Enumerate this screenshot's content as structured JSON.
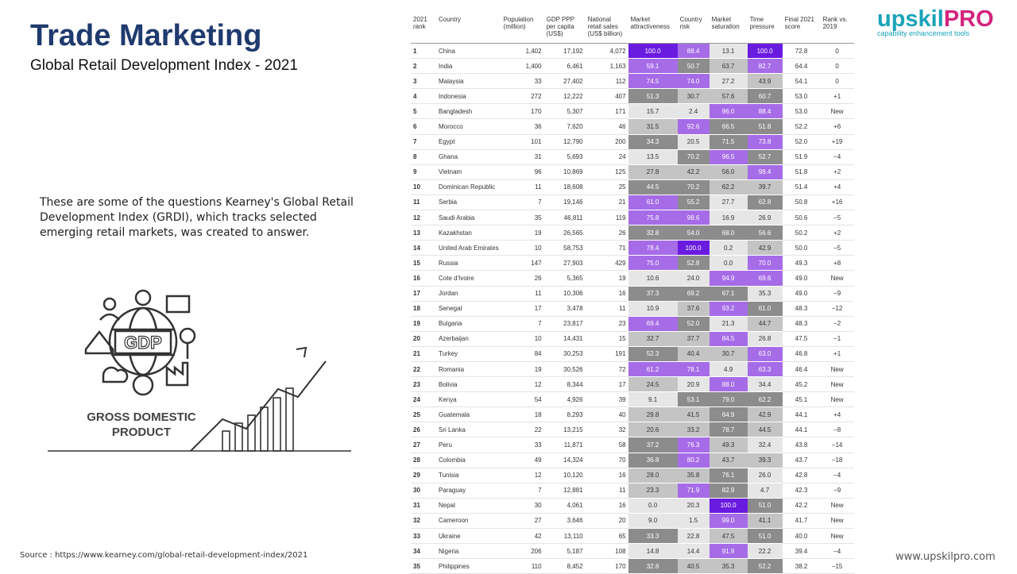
{
  "header": {
    "title": "Trade Marketing",
    "subtitle": "Global Retail Development Index - 2021"
  },
  "body": {
    "text": "These are some of the questions Kearney's Global Retail Development Index (GRDI), which tracks selected emerging retail markets, was created to answer."
  },
  "illustration": {
    "badge": "GDP",
    "caption_lines": [
      "GROSS DOMESTIC",
      "PRODUCT"
    ]
  },
  "footer": {
    "source": "Source : https://www.kearney.com/global-retail-development-index/2021",
    "website": "www.upskilpro.com"
  },
  "logo": {
    "name": "upskil",
    "suffix": "PRO",
    "tagline": "capability enhancement tools"
  },
  "table": {
    "header": [
      "2021 rank",
      "Country",
      "Population (million)",
      "GDP PPP per capita (US$)",
      "National retail sales (US$ billion)",
      "Market attractiveness",
      "Country risk",
      "Market saturation",
      "Time pressure",
      "Final 2021 score",
      "Rank vs. 2019"
    ],
    "rows": [
      [
        "1",
        "China",
        "1,402",
        "17,192",
        "4,072",
        "100.0",
        "88.4",
        "13.1",
        "100.0",
        "72.8",
        "0"
      ],
      [
        "2",
        "India",
        "1,400",
        "6,461",
        "1,163",
        "59.1",
        "50.7",
        "63.7",
        "82.7",
        "64.4",
        "0"
      ],
      [
        "3",
        "Malaysia",
        "33",
        "27,402",
        "112",
        "74.5",
        "74.0",
        "27.2",
        "43.9",
        "54.1",
        "0"
      ],
      [
        "4",
        "Indonesia",
        "272",
        "12,222",
        "407",
        "51.3",
        "30.7",
        "57.6",
        "60.7",
        "53.0",
        "+1"
      ],
      [
        "5",
        "Bangladesh",
        "170",
        "5,307",
        "171",
        "15.7",
        "2.4",
        "96.0",
        "88.4",
        "53.0",
        "New"
      ],
      [
        "6",
        "Morocco",
        "36",
        "7,620",
        "46",
        "31.5",
        "92.6",
        "66.5",
        "51.8",
        "52.2",
        "+6"
      ],
      [
        "7",
        "Egypt",
        "101",
        "12,790",
        "200",
        "34.3",
        "20.5",
        "71.5",
        "73.8",
        "52.0",
        "+19"
      ],
      [
        "8",
        "Ghana",
        "31",
        "5,693",
        "24",
        "13.5",
        "70.2",
        "96.5",
        "52.7",
        "51.9",
        "−4"
      ],
      [
        "9",
        "Vietnam",
        "96",
        "10,869",
        "125",
        "27.8",
        "42.2",
        "56.0",
        "98.4",
        "51.8",
        "+2"
      ],
      [
        "10",
        "Dominican Republic",
        "11",
        "18,608",
        "25",
        "44.5",
        "70.2",
        "62.2",
        "39.7",
        "51.4",
        "+4"
      ],
      [
        "11",
        "Serbia",
        "7",
        "19,146",
        "21",
        "61.0",
        "55.2",
        "27.7",
        "62.8",
        "50.8",
        "+16"
      ],
      [
        "12",
        "Saudi Arabia",
        "35",
        "46,811",
        "119",
        "75.8",
        "98.6",
        "16.9",
        "26.9",
        "50.6",
        "−5"
      ],
      [
        "13",
        "Kazakhstan",
        "19",
        "26,565",
        "26",
        "32.8",
        "54.0",
        "68.0",
        "56.6",
        "50.2",
        "+2"
      ],
      [
        "14",
        "United Arab Emirates",
        "10",
        "58,753",
        "71",
        "78.4",
        "100.0",
        "0.2",
        "42.9",
        "50.0",
        "−5"
      ],
      [
        "15",
        "Russia",
        "147",
        "27,903",
        "429",
        "75.0",
        "52.8",
        "0.0",
        "70.0",
        "49.3",
        "+8"
      ],
      [
        "16",
        "Cote d'Ivoire",
        "26",
        "5,365",
        "19",
        "10.6",
        "24.0",
        "94.9",
        "69.6",
        "49.0",
        "New"
      ],
      [
        "17",
        "Jordan",
        "11",
        "10,306",
        "16",
        "37.3",
        "69.2",
        "67.1",
        "35.3",
        "49.0",
        "−9"
      ],
      [
        "18",
        "Senegal",
        "17",
        "3,478",
        "11",
        "10.9",
        "37.6",
        "93.2",
        "61.0",
        "48.3",
        "−12"
      ],
      [
        "19",
        "Bulgaria",
        "7",
        "23,817",
        "23",
        "69.4",
        "52.0",
        "21.3",
        "44.7",
        "48.3",
        "−2"
      ],
      [
        "20",
        "Azerbaijan",
        "10",
        "14,431",
        "15",
        "32.7",
        "37.7",
        "84.5",
        "26.8",
        "47.5",
        "−1"
      ],
      [
        "21",
        "Turkey",
        "84",
        "30,253",
        "191",
        "52.3",
        "40.4",
        "30.7",
        "63.0",
        "46.8",
        "+1"
      ],
      [
        "22",
        "Romania",
        "19",
        "30,526",
        "72",
        "61.2",
        "78.1",
        "4.9",
        "63.3",
        "46.4",
        "New"
      ],
      [
        "23",
        "Bolivia",
        "12",
        "8,344",
        "17",
        "24.5",
        "20.9",
        "88.0",
        "34.4",
        "45.2",
        "New"
      ],
      [
        "24",
        "Kenya",
        "54",
        "4,926",
        "39",
        "9.1",
        "53.1",
        "79.0",
        "62.2",
        "45.1",
        "New"
      ],
      [
        "25",
        "Guatemala",
        "18",
        "8,293",
        "40",
        "29.8",
        "41.5",
        "64.9",
        "42.9",
        "44.1",
        "+4"
      ],
      [
        "26",
        "Sri Lanka",
        "22",
        "13,215",
        "32",
        "20.6",
        "33.2",
        "78.7",
        "44.5",
        "44.1",
        "−8"
      ],
      [
        "27",
        "Peru",
        "33",
        "11,871",
        "58",
        "37.2",
        "76.3",
        "49.3",
        "32.4",
        "43.8",
        "−14"
      ],
      [
        "28",
        "Colombia",
        "49",
        "14,324",
        "70",
        "36.8",
        "80.2",
        "43.7",
        "39.3",
        "43.7",
        "−18"
      ],
      [
        "29",
        "Tunisia",
        "12",
        "10,120",
        "16",
        "28.0",
        "35.8",
        "76.1",
        "26.0",
        "42.8",
        "−4"
      ],
      [
        "30",
        "Paraguay",
        "7",
        "12,881",
        "11",
        "23.3",
        "71.9",
        "82.9",
        "4.7",
        "42.3",
        "−9"
      ],
      [
        "31",
        "Nepal",
        "30",
        "4,061",
        "16",
        "0.0",
        "20.3",
        "100.0",
        "51.0",
        "42.2",
        "New"
      ],
      [
        "32",
        "Cameroon",
        "27",
        "3,646",
        "20",
        "9.0",
        "1.5",
        "99.0",
        "41.1",
        "41.7",
        "New"
      ],
      [
        "33",
        "Ukraine",
        "42",
        "13,110",
        "65",
        "33.3",
        "22.8",
        "47.5",
        "51.0",
        "40.0",
        "New"
      ],
      [
        "34",
        "Nigeria",
        "206",
        "5,187",
        "108",
        "14.8",
        "14.4",
        "91.9",
        "22.2",
        "39.4",
        "−4"
      ],
      [
        "35",
        "Philippines",
        "110",
        "8,452",
        "170",
        "32.8",
        "40.5",
        "35.3",
        "52.2",
        "38.2",
        "−15"
      ]
    ]
  }
}
